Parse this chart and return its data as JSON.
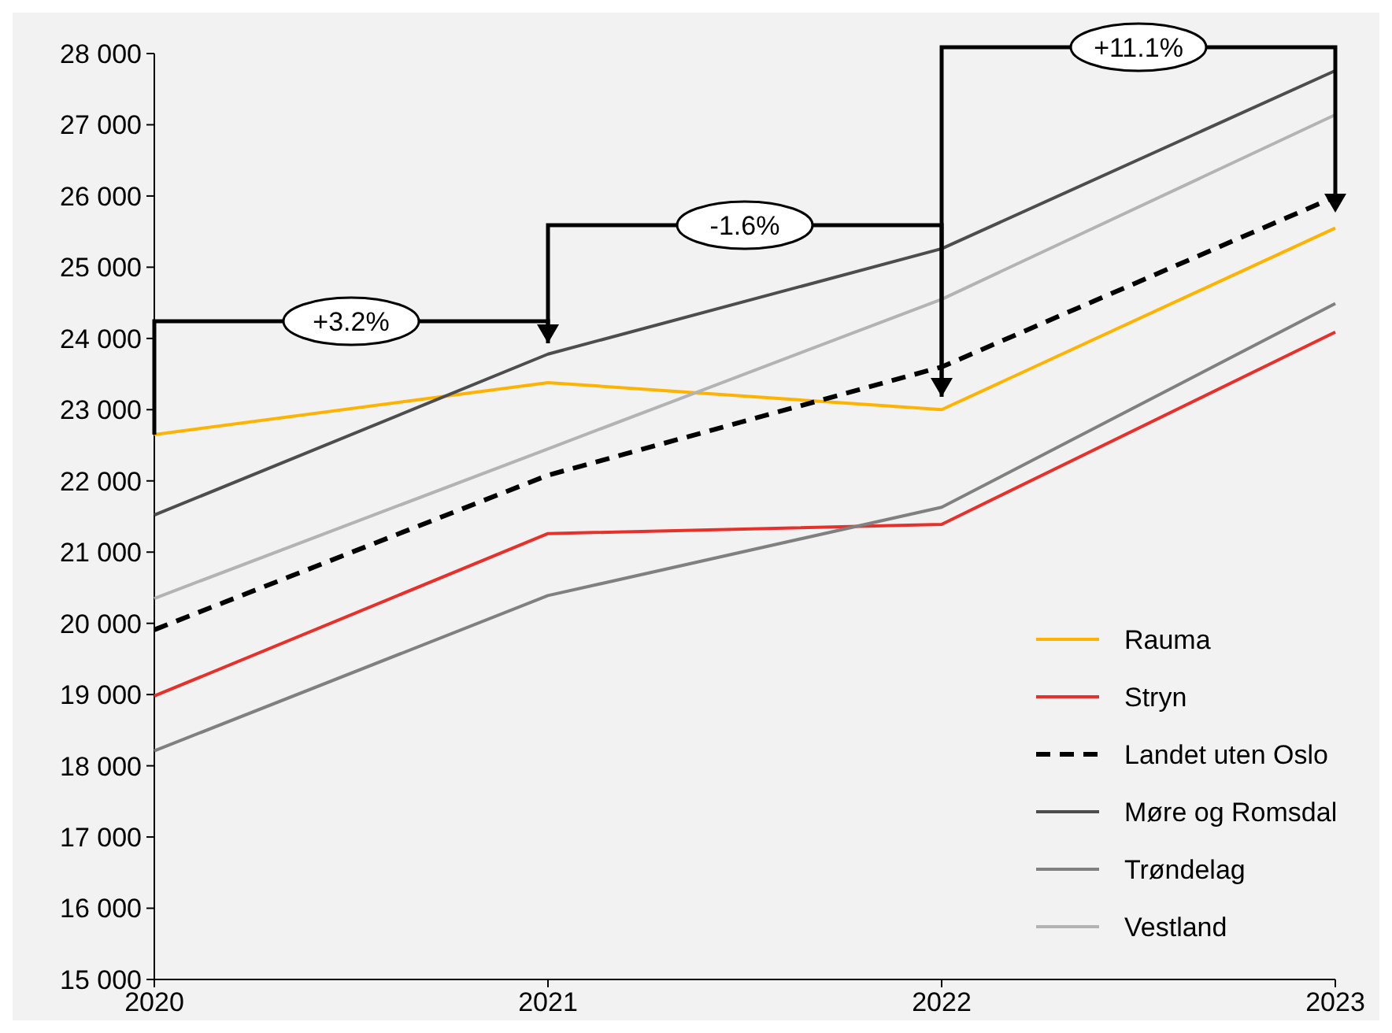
{
  "chart_data": {
    "type": "line",
    "x": [
      2020,
      2021,
      2022,
      2023
    ],
    "xlim": [
      2020,
      2023
    ],
    "xticks": [
      2020,
      2021,
      2022,
      2023
    ],
    "ylim": [
      15000,
      28000
    ],
    "yticks": [
      {
        "value": 15000,
        "label": "15 000"
      },
      {
        "value": 16000,
        "label": "16 000"
      },
      {
        "value": 17000,
        "label": "17 000"
      },
      {
        "value": 18000,
        "label": "18 000"
      },
      {
        "value": 19000,
        "label": "19 000"
      },
      {
        "value": 20000,
        "label": "20 000"
      },
      {
        "value": 21000,
        "label": "21 000"
      },
      {
        "value": 22000,
        "label": "22 000"
      },
      {
        "value": 23000,
        "label": "23 000"
      },
      {
        "value": 24000,
        "label": "24 000"
      },
      {
        "value": 25000,
        "label": "25 000"
      },
      {
        "value": 26000,
        "label": "26 000"
      },
      {
        "value": 27000,
        "label": "27 000"
      },
      {
        "value": 28000,
        "label": "28 000"
      }
    ],
    "grid": false,
    "legend": "bottom right",
    "marker": "none",
    "series": [
      {
        "name": "Rauma",
        "color": "#ffb300",
        "values": [
          22650,
          23380,
          23000,
          25550
        ]
      },
      {
        "name": "Stryn",
        "color": "#e8302a",
        "values": [
          18980,
          21260,
          21390,
          24090
        ]
      },
      {
        "name": "Landet uten Oslo",
        "color": "#000000",
        "line_style": "dashed",
        "values": [
          19910,
          22080,
          23600,
          25990
        ]
      },
      {
        "name": "Møre og Romsdal",
        "color": "#4d4d4d",
        "values": [
          21520,
          23780,
          25260,
          27760
        ]
      },
      {
        "name": "Trøndelag",
        "color": "#808080",
        "values": [
          18210,
          20390,
          21630,
          24490
        ]
      },
      {
        "name": "Vestland",
        "color": "#b3b3b3",
        "values": [
          20350,
          22450,
          24550,
          27140
        ]
      }
    ],
    "annotations": [
      "+3.2%",
      "-1.6%",
      "+11.1%"
    ]
  }
}
